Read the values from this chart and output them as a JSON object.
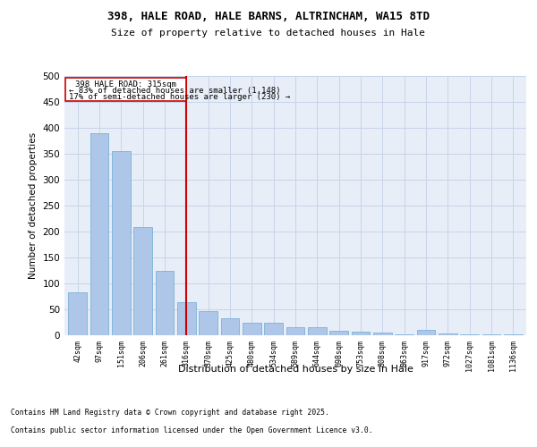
{
  "title1": "398, HALE ROAD, HALE BARNS, ALTRINCHAM, WA15 8TD",
  "title2": "Size of property relative to detached houses in Hale",
  "xlabel": "Distribution of detached houses by size in Hale",
  "ylabel": "Number of detached properties",
  "categories": [
    "42sqm",
    "97sqm",
    "151sqm",
    "206sqm",
    "261sqm",
    "316sqm",
    "370sqm",
    "425sqm",
    "480sqm",
    "534sqm",
    "589sqm",
    "644sqm",
    "698sqm",
    "753sqm",
    "808sqm",
    "863sqm",
    "917sqm",
    "972sqm",
    "1027sqm",
    "1081sqm",
    "1136sqm"
  ],
  "values": [
    83,
    390,
    356,
    208,
    125,
    63,
    47,
    33,
    24,
    24,
    15,
    15,
    8,
    7,
    6,
    1,
    10,
    3,
    1,
    1,
    1
  ],
  "bar_color": "#aec6e8",
  "bar_edge_color": "#6aaad4",
  "vline_color": "#cc0000",
  "annotation_line1": "398 HALE ROAD: 315sqm",
  "annotation_line2": "← 83% of detached houses are smaller (1,148)",
  "annotation_line3": "17% of semi-detached houses are larger (230) →",
  "annotation_box_edgecolor": "#cc0000",
  "ylim": [
    0,
    500
  ],
  "yticks": [
    0,
    50,
    100,
    150,
    200,
    250,
    300,
    350,
    400,
    450,
    500
  ],
  "grid_color": "#c8d4e8",
  "bg_color": "#e8eef8",
  "footer1": "Contains HM Land Registry data © Crown copyright and database right 2025.",
  "footer2": "Contains public sector information licensed under the Open Government Licence v3.0."
}
